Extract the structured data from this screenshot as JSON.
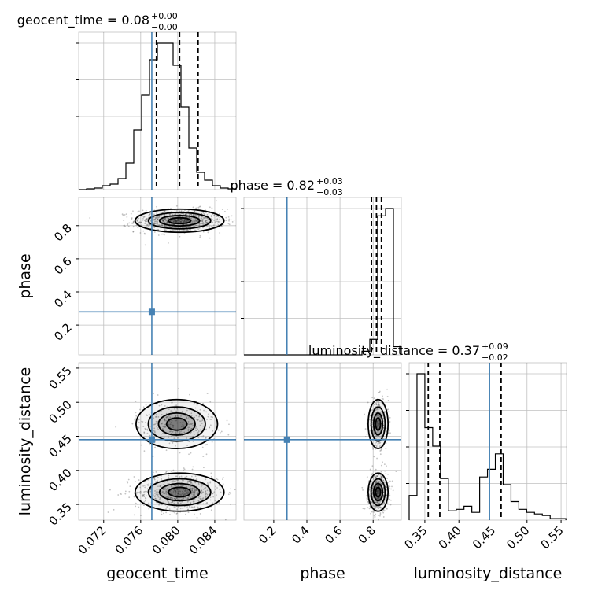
{
  "chart_data": {
    "type": "corner",
    "parameters": [
      "geocent_time",
      "phase",
      "luminosity_distance"
    ],
    "injection": {
      "geocent_time": 0.0772,
      "phase": 0.28,
      "luminosity_distance": 0.445
    },
    "colors": {
      "hist": "#000000",
      "truth": "#4682b4",
      "grid": "#c0c0c0",
      "scatter": "#555555"
    },
    "grid": true,
    "titles": [
      {
        "text": "geocent_time = 0.08",
        "sup": "+0.00",
        "sub": "−0.00"
      },
      {
        "text": "phase = 0.82",
        "sup": "+0.03",
        "sub": "−0.03"
      },
      {
        "text": "luminosity_distance = 0.37",
        "sup": "+0.09",
        "sub": "−0.02"
      }
    ],
    "axes": {
      "geocent_time": {
        "label": "geocent_time",
        "range": [
          0.0693,
          0.0863
        ],
        "ticks": [
          0.072,
          0.076,
          0.08,
          0.084
        ],
        "tick_labels": [
          "0.072",
          "0.076",
          "0.080",
          "0.084"
        ]
      },
      "phase": {
        "label": "phase",
        "range": [
          0.02,
          0.97
        ],
        "ticks": [
          0.2,
          0.4,
          0.6,
          0.8
        ],
        "tick_labels": [
          "0.2",
          "0.4",
          "0.6",
          "0.8"
        ]
      },
      "luminosity_distance": {
        "label": "luminosity_distance",
        "range": [
          0.327,
          0.558
        ],
        "ticks": [
          0.35,
          0.4,
          0.45,
          0.5,
          0.55
        ],
        "tick_labels": [
          "0.35",
          "0.40",
          "0.45",
          "0.50",
          "0.55"
        ]
      }
    },
    "histograms": {
      "geocent_time": {
        "edges": [
          0.0693,
          0.07015,
          0.071,
          0.07185,
          0.0727,
          0.07355,
          0.0744,
          0.07525,
          0.0761,
          0.07695,
          0.0778,
          0.07865,
          0.0795,
          0.08035,
          0.0812,
          0.08205,
          0.0829,
          0.08375,
          0.0846,
          0.08545,
          0.0863
        ],
        "counts": [
          0,
          1,
          2,
          5,
          7,
          14,
          34,
          76,
          120,
          165,
          186,
          186,
          158,
          105,
          53,
          22,
          12,
          5,
          2,
          1
        ],
        "quantiles": [
          0.0777,
          0.0802,
          0.0822
        ]
      },
      "phase": {
        "edges": [
          0.02,
          0.0675,
          0.115,
          0.1625,
          0.21,
          0.2575,
          0.305,
          0.3525,
          0.4,
          0.4475,
          0.495,
          0.5425,
          0.59,
          0.6375,
          0.685,
          0.7325,
          0.78,
          0.8275,
          0.875,
          0.9225,
          0.97
        ],
        "counts": [
          0,
          0,
          0,
          0,
          0,
          0,
          0,
          0,
          0,
          0,
          0,
          0,
          0,
          0,
          0,
          4,
          17,
          152,
          160,
          9
        ],
        "quantiles": [
          0.79,
          0.82,
          0.85
        ]
      },
      "luminosity_distance": {
        "edges": [
          0.327,
          0.3385,
          0.35,
          0.3615,
          0.373,
          0.3845,
          0.396,
          0.4075,
          0.419,
          0.4305,
          0.442,
          0.4535,
          0.465,
          0.4765,
          0.488,
          0.4995,
          0.511,
          0.5225,
          0.534,
          0.5455,
          0.557
        ],
        "counts": [
          16,
          95,
          60,
          48,
          27,
          6,
          7,
          9,
          5,
          28,
          33,
          43,
          23,
          12,
          7,
          5,
          4,
          3,
          1,
          1
        ],
        "quantiles": [
          0.355,
          0.372,
          0.462
        ]
      }
    },
    "samples_2d": {
      "phase_vs_geocent_time": {
        "clusters": [
          {
            "cx": 0.0802,
            "cy": 0.83,
            "sx": 0.0024,
            "sy": 0.035,
            "n": 900
          }
        ]
      },
      "luminosity_distance_vs_geocent_time": {
        "clusters": [
          {
            "cx": 0.0802,
            "cy": 0.368,
            "sx": 0.0024,
            "sy": 0.014,
            "n": 650
          },
          {
            "cx": 0.0799,
            "cy": 0.468,
            "sx": 0.0022,
            "sy": 0.018,
            "n": 350
          }
        ]
      },
      "luminosity_distance_vs_phase": {
        "clusters": [
          {
            "cx": 0.83,
            "cy": 0.368,
            "sx": 0.03,
            "sy": 0.014,
            "n": 650
          },
          {
            "cx": 0.83,
            "cy": 0.468,
            "sx": 0.03,
            "sy": 0.018,
            "n": 350
          }
        ]
      }
    }
  }
}
